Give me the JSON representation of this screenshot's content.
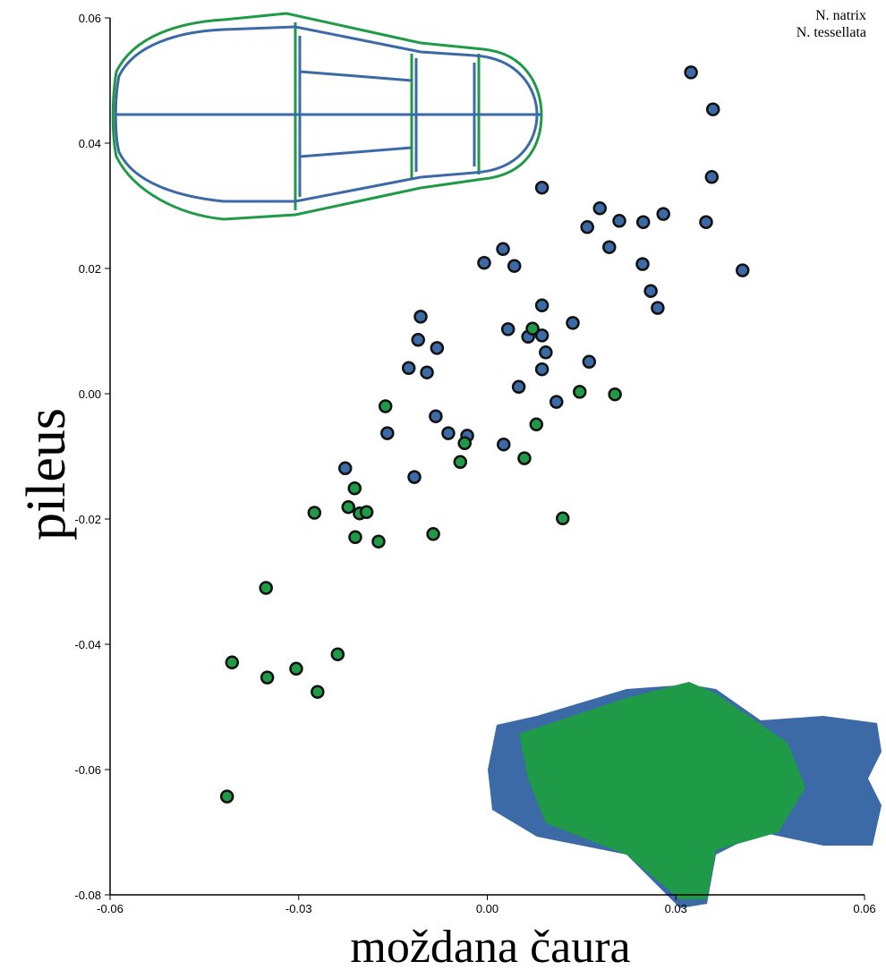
{
  "chart_data": {
    "type": "scatter",
    "xlabel": "moždana čaura",
    "ylabel": "pileus",
    "xlim": [
      -0.06,
      0.06
    ],
    "ylim": [
      -0.08,
      0.06
    ],
    "xticks": [
      -0.06,
      -0.03,
      {
        "value": 0,
        "label": "0.00"
      },
      0.03,
      0.06
    ],
    "yticks": [
      -0.08,
      -0.06,
      -0.04,
      -0.02,
      {
        "value": 0,
        "label": "0.00"
      },
      0.02,
      0.04,
      0.06
    ],
    "legend": "top-right",
    "series": [
      {
        "name": "N. tessellata",
        "color": "#3b6aa6",
        "x": [
          0.0324,
          0.0359,
          0.0357,
          0.0348,
          0.0406,
          0.028,
          0.0248,
          0.021,
          0.0179,
          0.0159,
          0.0194,
          0.0087,
          0.0247,
          0.026,
          0.0271,
          0.0025,
          -0.0005,
          0.0043,
          0.0087,
          0.0136,
          0.0033,
          0.0065,
          0.0087,
          0.0093,
          0.0087,
          0.0162,
          0.005,
          0.011,
          -0.0106,
          -0.011,
          -0.008,
          -0.0125,
          -0.0096,
          -0.0082,
          -0.0062,
          -0.0032,
          0.0026,
          -0.0159,
          -0.0116,
          -0.0226
        ],
        "y": [
          0.0513,
          0.0454,
          0.0346,
          0.0274,
          0.0197,
          0.0287,
          0.0274,
          0.0276,
          0.0296,
          0.0266,
          0.0234,
          0.0329,
          0.0207,
          0.0164,
          0.0137,
          0.0231,
          0.0209,
          0.0204,
          0.0141,
          0.0113,
          0.0103,
          0.0091,
          0.0093,
          0.0066,
          0.0039,
          0.0051,
          0.0011,
          -0.0013,
          0.0123,
          0.0086,
          0.0073,
          0.0041,
          0.0034,
          -0.0036,
          -0.0063,
          -0.0067,
          -0.0081,
          -0.0063,
          -0.0133,
          -0.0119
        ]
      },
      {
        "name": "N. natrix",
        "color": "#1f9a46",
        "x": [
          0.0072,
          0.0147,
          0.0203,
          0.0078,
          0.0059,
          -0.0036,
          -0.0043,
          -0.0162,
          -0.0211,
          -0.0221,
          -0.0275,
          -0.0203,
          -0.0192,
          -0.021,
          -0.0173,
          -0.0086,
          0.012,
          -0.0352,
          -0.0238,
          -0.0304,
          -0.035,
          -0.0406,
          -0.027,
          -0.0414
        ],
        "y": [
          0.0104,
          0.0003,
          -0.0001,
          -0.0049,
          -0.0103,
          -0.0079,
          -0.0109,
          -0.002,
          -0.0151,
          -0.0181,
          -0.019,
          -0.0191,
          -0.0189,
          -0.0229,
          -0.0236,
          -0.0224,
          -0.0199,
          -0.031,
          -0.0416,
          -0.0439,
          -0.0453,
          -0.0429,
          -0.0476,
          -0.0643
        ]
      }
    ]
  }
}
